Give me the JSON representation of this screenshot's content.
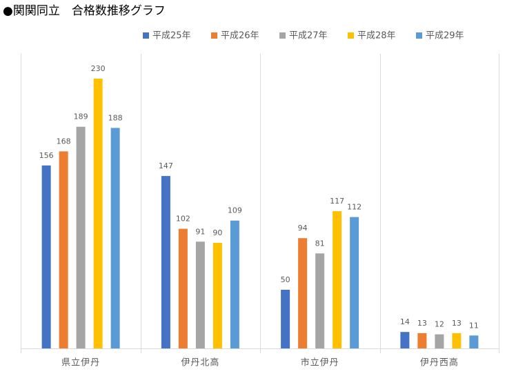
{
  "chart_data": {
    "type": "bar",
    "title": "●関関同立　合格数推移グラフ",
    "categories": [
      "県立伊丹",
      "伊丹北高",
      "市立伊丹",
      "伊丹西高"
    ],
    "series": [
      {
        "name": "平成25年",
        "color": "#4472c4",
        "values": [
          156,
          147,
          50,
          14
        ]
      },
      {
        "name": "平成26年",
        "color": "#ed7d31",
        "values": [
          168,
          102,
          94,
          13
        ]
      },
      {
        "name": "平成27年",
        "color": "#a5a5a5",
        "values": [
          189,
          91,
          81,
          12
        ]
      },
      {
        "name": "平成28年",
        "color": "#ffc000",
        "values": [
          230,
          90,
          117,
          13
        ]
      },
      {
        "name": "平成29年",
        "color": "#5b9bd5",
        "values": [
          188,
          109,
          112,
          11
        ]
      }
    ],
    "ylim": [
      0,
      250
    ],
    "legend": "top"
  }
}
